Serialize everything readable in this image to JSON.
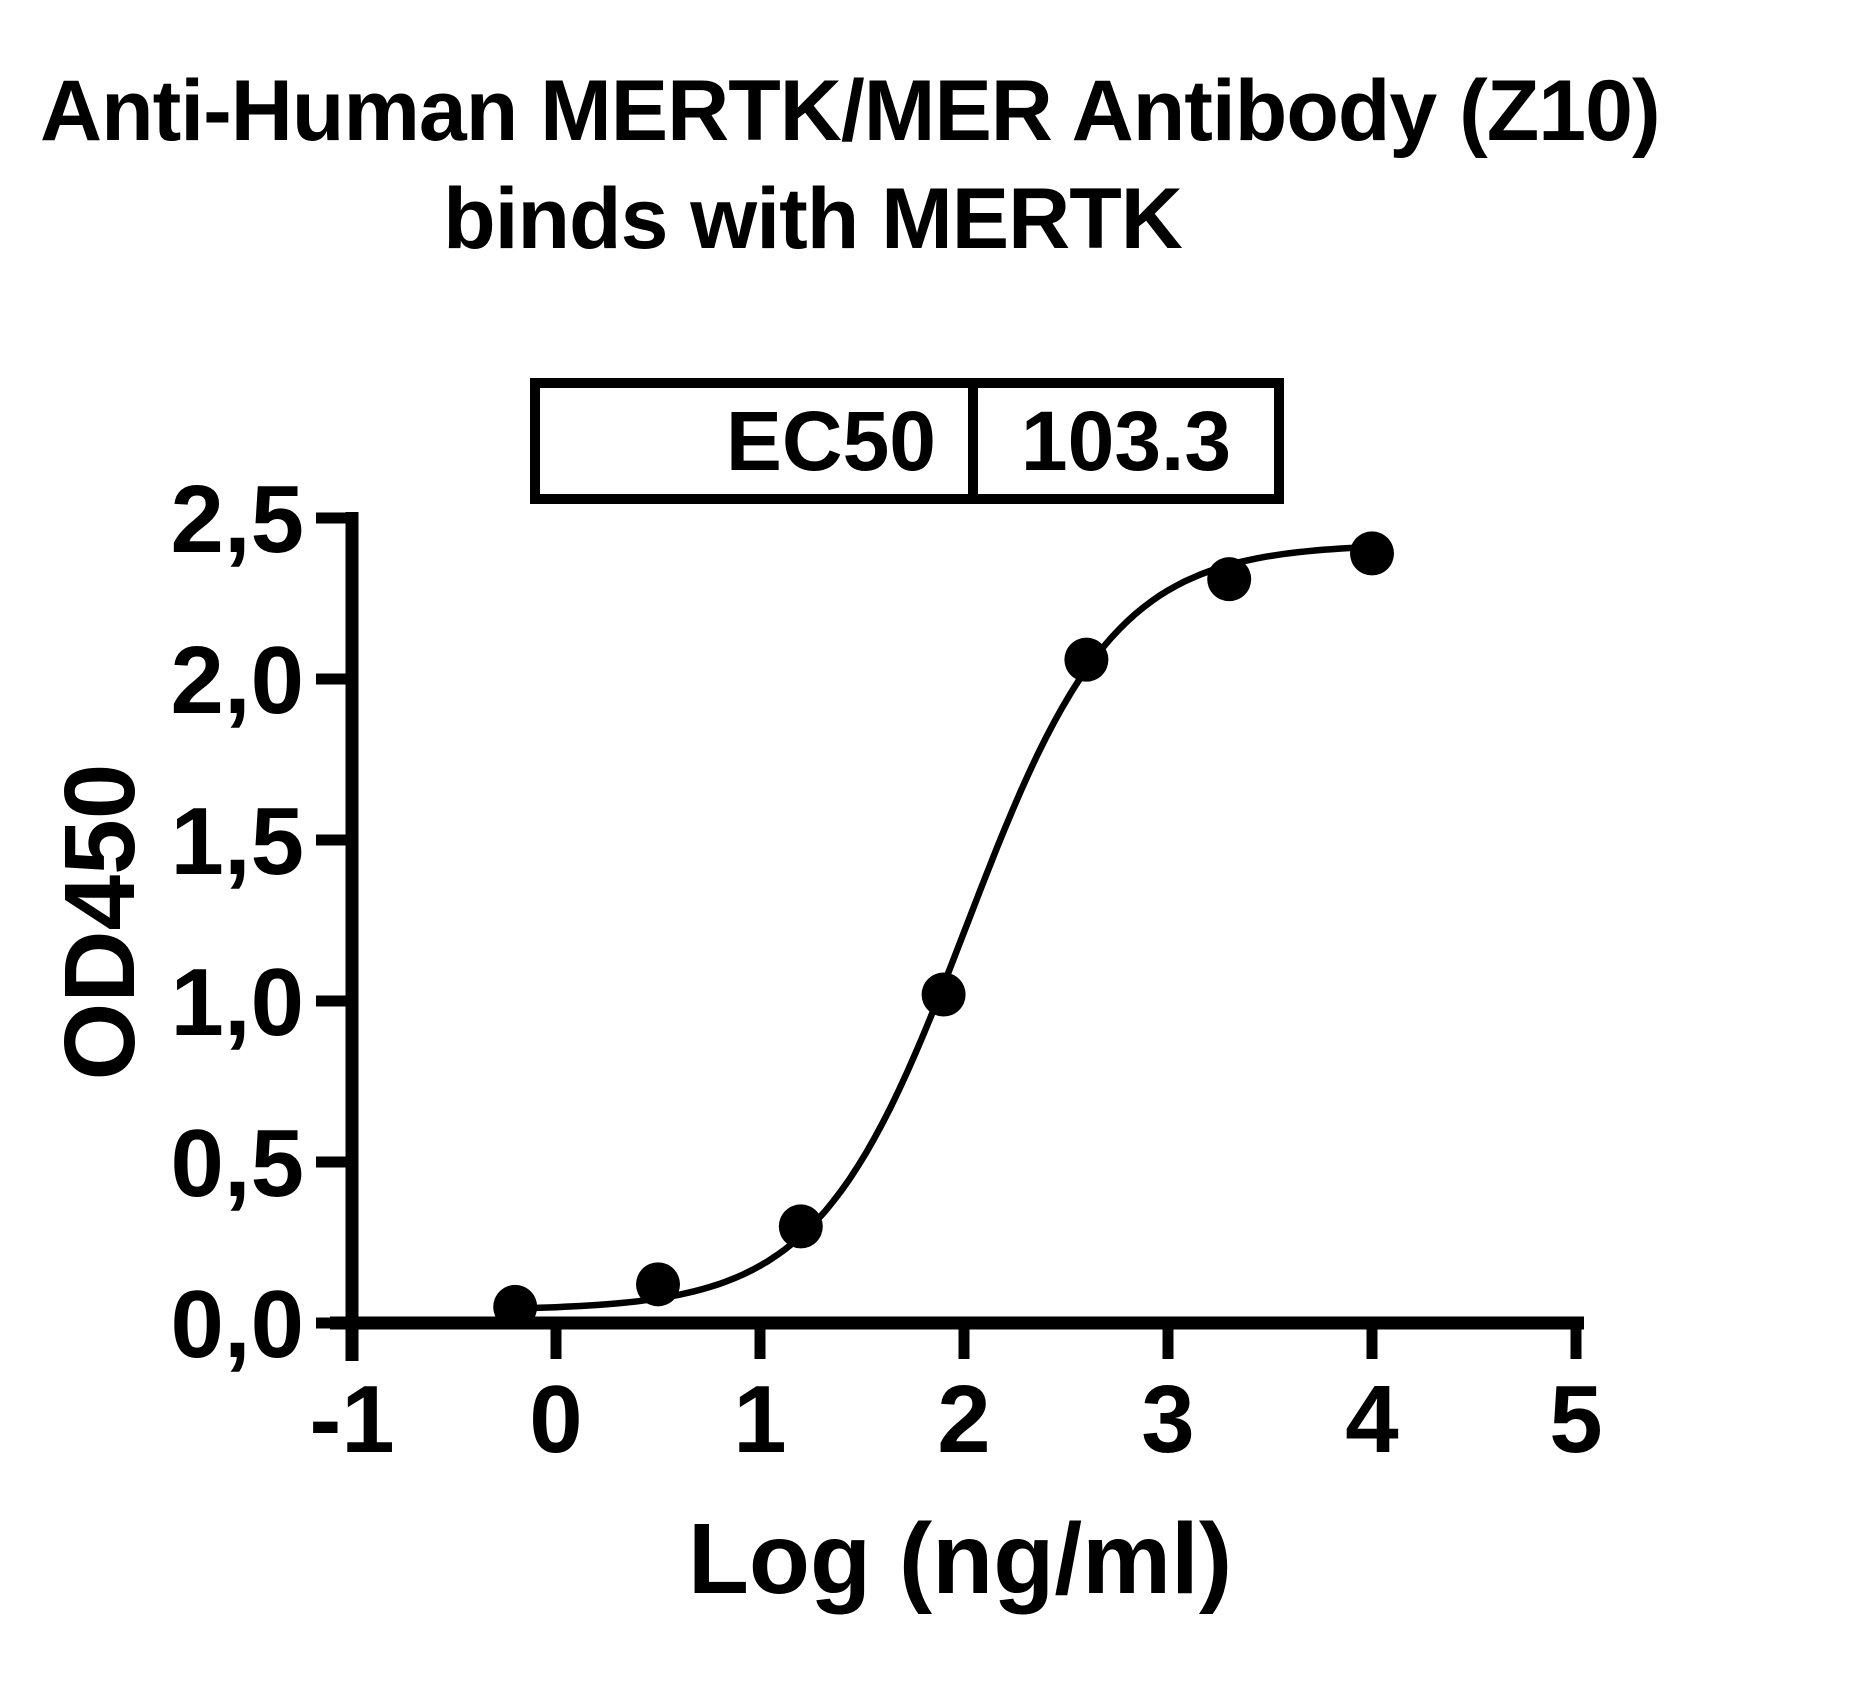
{
  "title": {
    "line1": "Anti-Human MERTK/MER Antibody (Z10)",
    "line2": "binds with MERTK"
  },
  "ec50_table": {
    "label": "EC50",
    "value": "103.3"
  },
  "chart_data": {
    "type": "scatter",
    "title": "Anti-Human MERTK/MER Antibody (Z10) binds with MERTK",
    "xlabel": "Log (ng/ml)",
    "ylabel": "OD450",
    "xlim": [
      -1,
      5
    ],
    "ylim": [
      0.0,
      2.5
    ],
    "x_ticks": [
      -1,
      0,
      1,
      2,
      3,
      4,
      5
    ],
    "x_tick_labels": [
      "-1",
      "0",
      "1",
      "2",
      "3",
      "4",
      "5"
    ],
    "y_ticks": [
      0.0,
      0.5,
      1.0,
      1.5,
      2.0,
      2.5
    ],
    "y_tick_labels": [
      "0,0",
      "0,5",
      "1,0",
      "1,5",
      "2,0",
      "2,5"
    ],
    "grid": false,
    "legend": "none",
    "marker_color": "#000000",
    "line_color": "#000000",
    "points": {
      "x": [
        -0.2,
        0.5,
        1.2,
        1.9,
        2.6,
        3.3,
        4.0
      ],
      "y": [
        0.05,
        0.12,
        0.3,
        1.02,
        2.06,
        2.31,
        2.39
      ]
    },
    "fit_curve": {
      "model": "4PL",
      "bottom": 0.04,
      "top": 2.42,
      "log_ec50": 2.01,
      "hill": 1.2,
      "x_start": -0.2,
      "x_end": 4.0
    },
    "ec50": 103.3
  }
}
